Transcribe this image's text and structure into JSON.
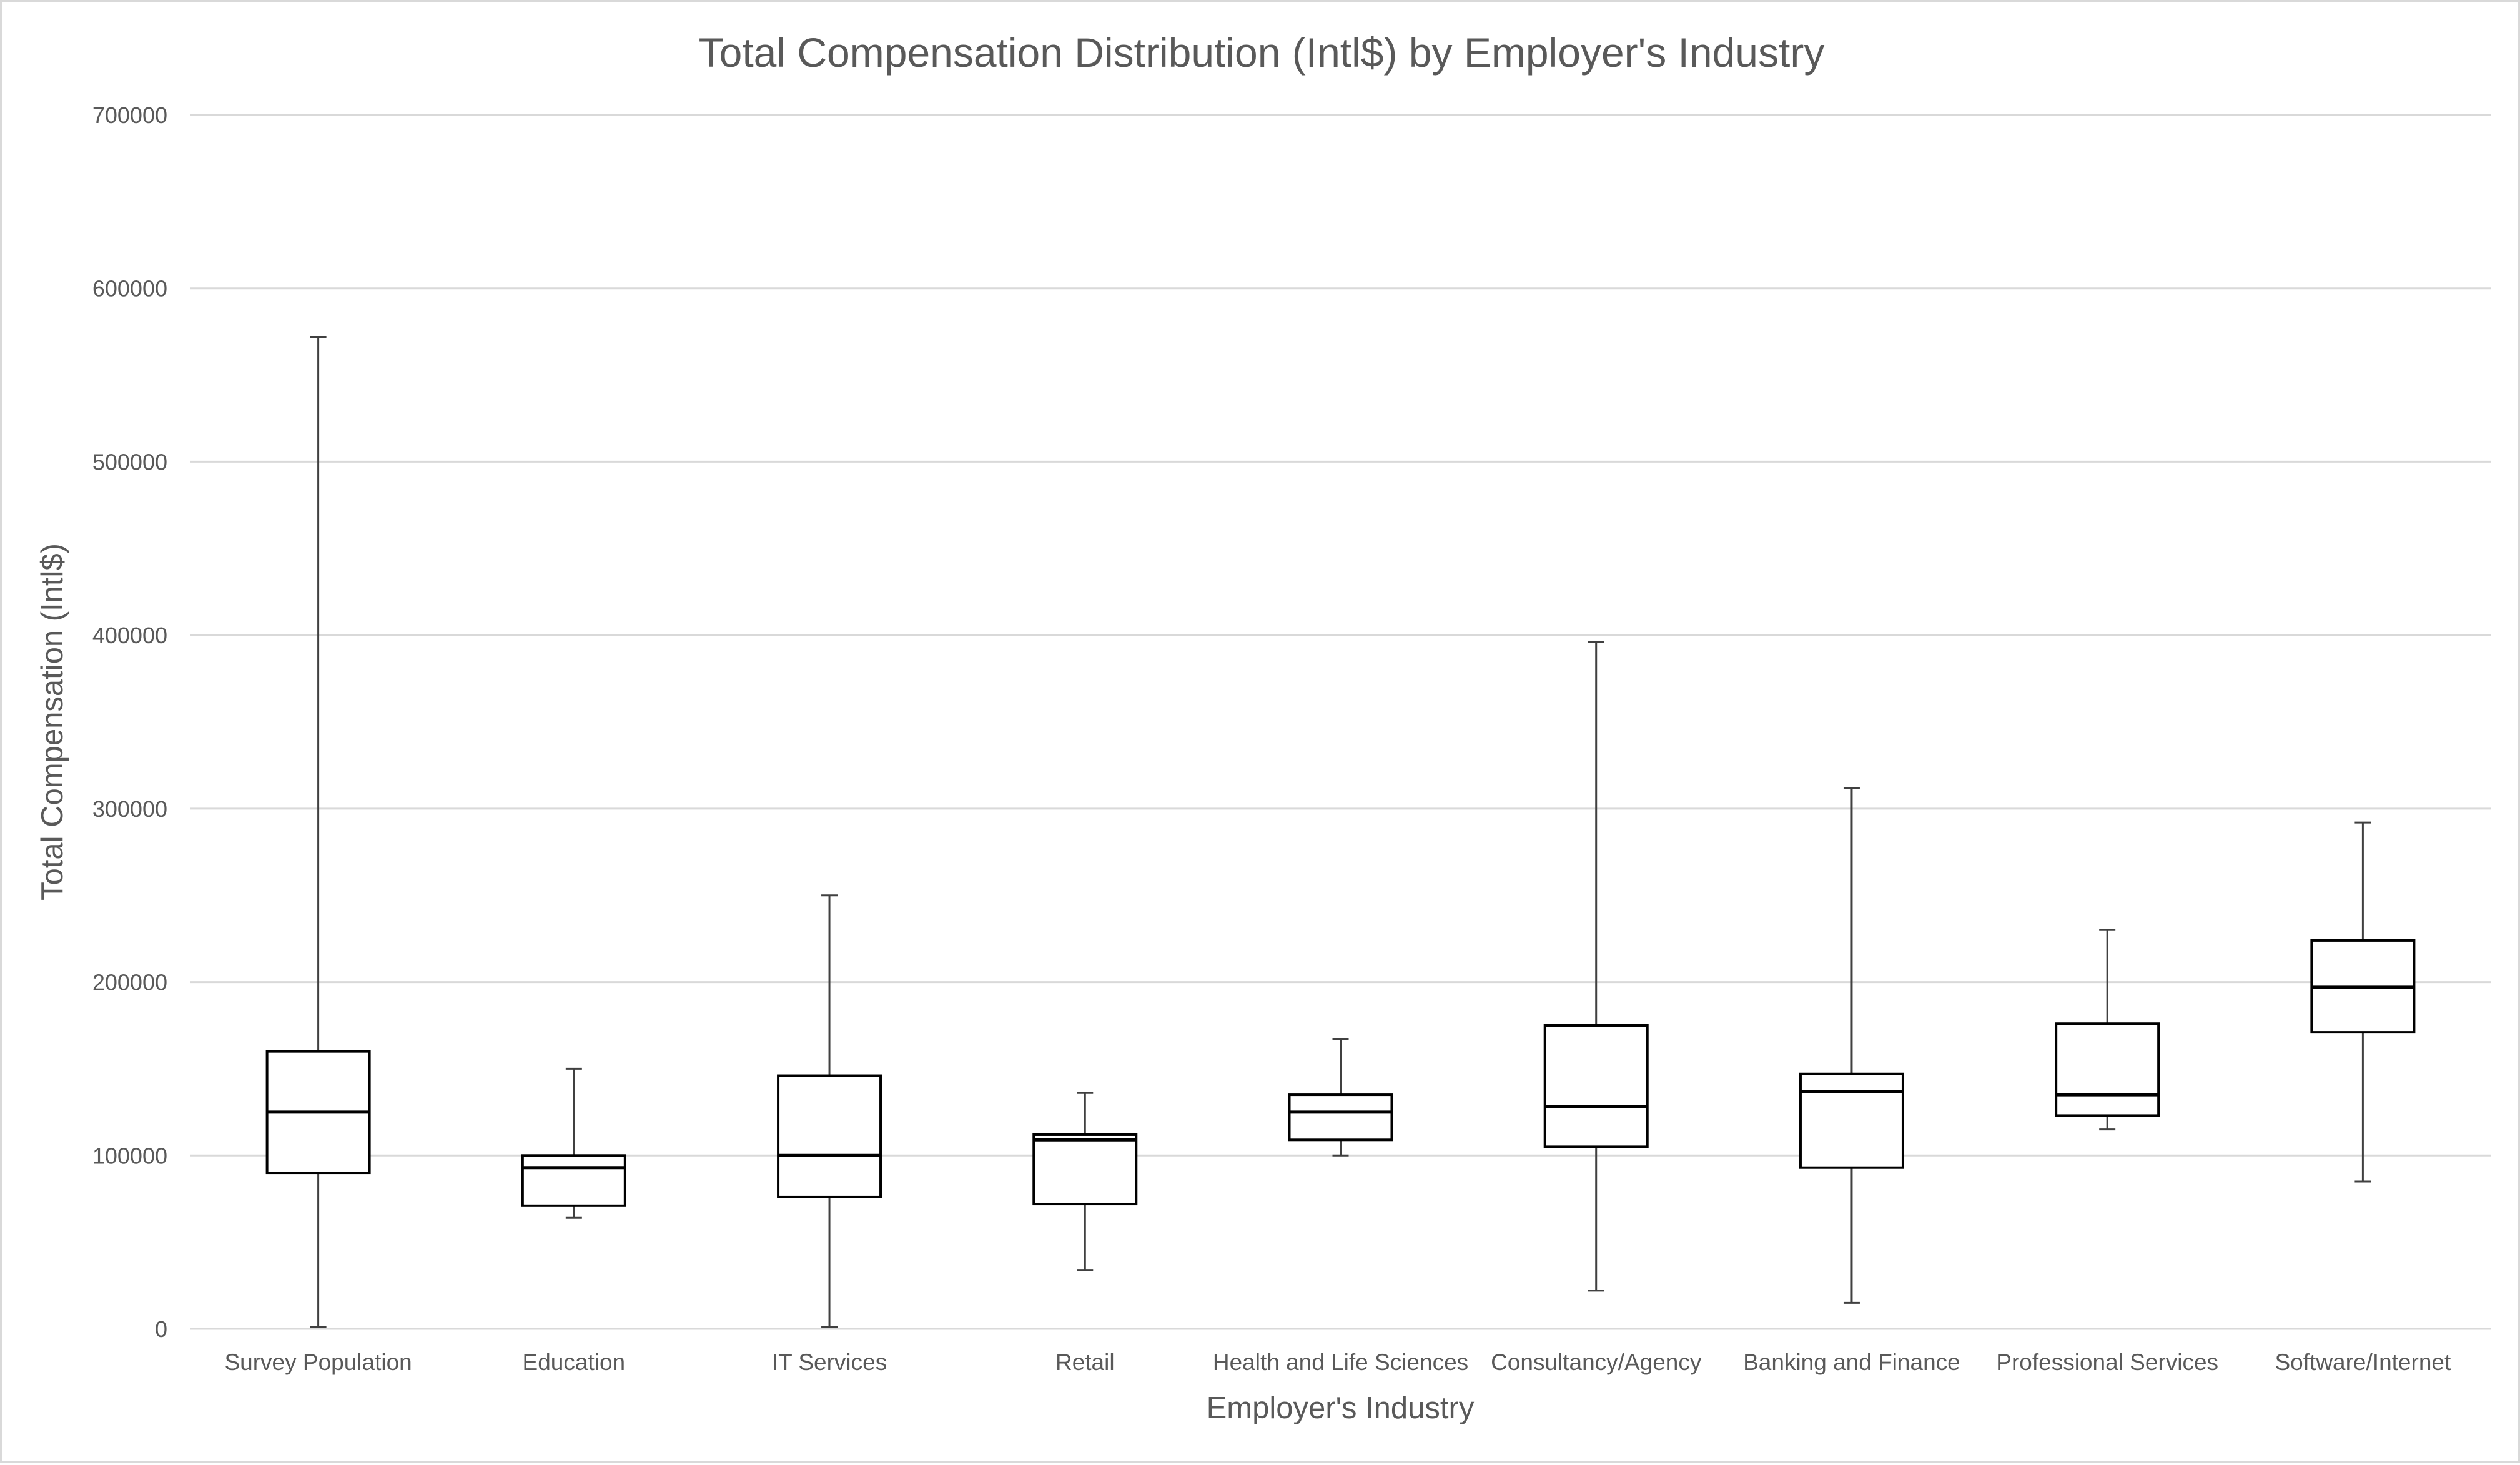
{
  "chart_data": {
    "type": "boxplot",
    "title": "Total Compensation Distribution (Intl$) by Employer's Industry",
    "xlabel": "Employer's Industry",
    "ylabel": "Total Compensation (Intl$)",
    "ylim": [
      0,
      700000
    ],
    "yticks": [
      0,
      100000,
      200000,
      300000,
      400000,
      500000,
      600000,
      700000
    ],
    "ytick_labels": [
      "0",
      "100000",
      "200000",
      "300000",
      "400000",
      "500000",
      "600000",
      "700000"
    ],
    "grid": true,
    "legend": "none",
    "categories": [
      "Survey Population",
      "Education",
      "IT Services",
      "Retail",
      "Health and Life Sciences",
      "Consultancy/Agency",
      "Banking and Finance",
      "Professional Services",
      "Software/Internet"
    ],
    "boxes": [
      {
        "min": 1000,
        "q1": 90000,
        "median": 125000,
        "q3": 160000,
        "max": 572000
      },
      {
        "min": 64000,
        "q1": 71000,
        "median": 93000,
        "q3": 100000,
        "max": 150000
      },
      {
        "min": 1000,
        "q1": 76000,
        "median": 100000,
        "q3": 146000,
        "max": 250000
      },
      {
        "min": 34000,
        "q1": 72000,
        "median": 109000,
        "q3": 112000,
        "max": 136000
      },
      {
        "min": 100000,
        "q1": 109000,
        "median": 125000,
        "q3": 135000,
        "max": 167000
      },
      {
        "min": 22000,
        "q1": 105000,
        "median": 128000,
        "q3": 175000,
        "max": 396000
      },
      {
        "min": 15000,
        "q1": 93000,
        "median": 137000,
        "q3": 147000,
        "max": 312000
      },
      {
        "min": 115000,
        "q1": 123000,
        "median": 135000,
        "q3": 176000,
        "max": 230000
      },
      {
        "min": 85000,
        "q1": 171000,
        "median": 197000,
        "q3": 224000,
        "max": 292000
      }
    ]
  },
  "colors": {
    "text": "#595959",
    "grid": "#d9d9d9",
    "whisker": "#404040",
    "box_stroke": "#000000",
    "box_fill": "#ffffff"
  }
}
